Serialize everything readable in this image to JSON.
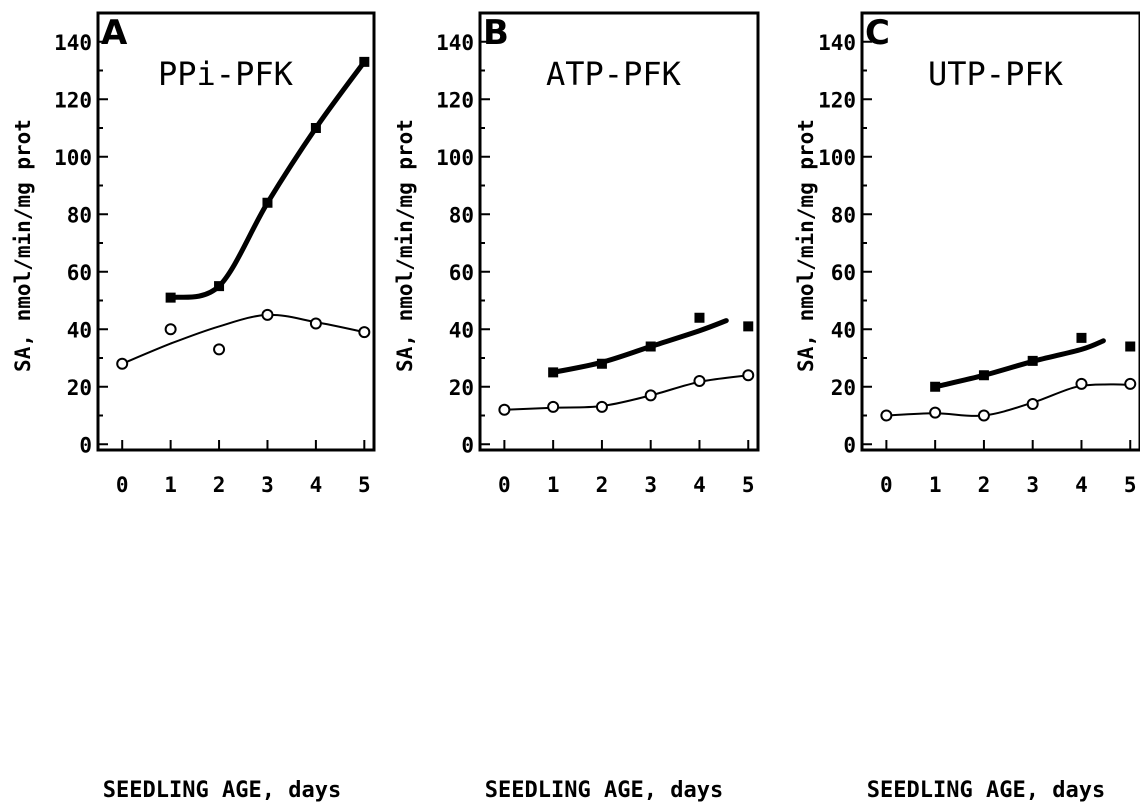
{
  "chart_data": [
    {
      "type": "line",
      "panel_label": "A",
      "title": "PPi-PFK",
      "xlabel": "SEEDLING AGE, days",
      "ylabel": "SA, nmol/min/mg prot",
      "xlim": [
        -0.5,
        5.2
      ],
      "ylim": [
        -2,
        150
      ],
      "x_ticks": [
        0,
        1,
        2,
        3,
        4,
        5
      ],
      "y_ticks": [
        0,
        20,
        40,
        60,
        80,
        100,
        120,
        140
      ],
      "series": [
        {
          "marker": "filled-square",
          "line": "thick",
          "x": [
            1,
            2,
            3,
            4,
            5
          ],
          "y": [
            51,
            55,
            84,
            110,
            133
          ],
          "fit": [
            [
              1,
              51
            ],
            [
              2,
              55
            ],
            [
              3,
              84
            ],
            [
              4,
              110
            ],
            [
              5,
              133
            ]
          ]
        },
        {
          "marker": "open-circle",
          "line": "thin",
          "x": [
            0,
            1,
            2,
            3,
            4,
            5
          ],
          "y": [
            28,
            40,
            33,
            45,
            42,
            39
          ],
          "fit": [
            [
              0,
              28
            ],
            [
              1,
              35
            ],
            [
              2,
              41
            ],
            [
              3,
              45
            ],
            [
              4,
              42.5
            ],
            [
              5,
              39
            ]
          ]
        }
      ]
    },
    {
      "type": "line",
      "panel_label": "B",
      "title": "ATP-PFK",
      "xlabel": "SEEDLING AGE, days",
      "ylabel": "SA, nmol/min/mg prot",
      "xlim": [
        -0.5,
        5.2
      ],
      "ylim": [
        -2,
        150
      ],
      "x_ticks": [
        0,
        1,
        2,
        3,
        4,
        5
      ],
      "y_ticks": [
        0,
        20,
        40,
        60,
        80,
        100,
        120,
        140
      ],
      "series": [
        {
          "marker": "filled-square",
          "line": "thick",
          "x": [
            1,
            2,
            3,
            4,
            5
          ],
          "y": [
            25,
            28,
            34,
            44,
            41
          ],
          "fit": [
            [
              1,
              25
            ],
            [
              2,
              28.5
            ],
            [
              3,
              34
            ],
            [
              4,
              39.5
            ],
            [
              4.55,
              43
            ]
          ]
        },
        {
          "marker": "open-circle",
          "line": "thin",
          "x": [
            0,
            1,
            2,
            3,
            4,
            5
          ],
          "y": [
            12,
            13,
            13,
            17,
            22,
            24
          ],
          "fit": [
            [
              0,
              12
            ],
            [
              1,
              12.7
            ],
            [
              2,
              13.3
            ],
            [
              3,
              17
            ],
            [
              4,
              21.7
            ],
            [
              5,
              24
            ]
          ]
        }
      ]
    },
    {
      "type": "line",
      "panel_label": "C",
      "title": "UTP-PFK",
      "xlabel": "SEEDLING AGE, days",
      "ylabel": "SA, nmol/min/mg prot",
      "xlim": [
        -0.5,
        5.2
      ],
      "ylim": [
        -2,
        150
      ],
      "x_ticks": [
        0,
        1,
        2,
        3,
        4,
        5
      ],
      "y_ticks": [
        0,
        20,
        40,
        60,
        80,
        100,
        120,
        140
      ],
      "series": [
        {
          "marker": "filled-square",
          "line": "thick",
          "x": [
            1,
            2,
            3,
            4,
            5
          ],
          "y": [
            20,
            24,
            29,
            37,
            34
          ],
          "fit": [
            [
              1,
              20
            ],
            [
              2,
              24
            ],
            [
              3,
              28.8
            ],
            [
              4,
              33
            ],
            [
              4.45,
              36
            ]
          ]
        },
        {
          "marker": "open-circle",
          "line": "thin",
          "x": [
            0,
            1,
            2,
            3,
            4,
            5
          ],
          "y": [
            10,
            11,
            10,
            14,
            21,
            21
          ],
          "fit": [
            [
              0,
              10
            ],
            [
              1,
              10.8
            ],
            [
              2,
              10
            ],
            [
              3,
              14.5
            ],
            [
              3.9,
              20
            ],
            [
              4.6,
              20.8
            ],
            [
              5,
              20.6
            ]
          ]
        }
      ]
    }
  ]
}
